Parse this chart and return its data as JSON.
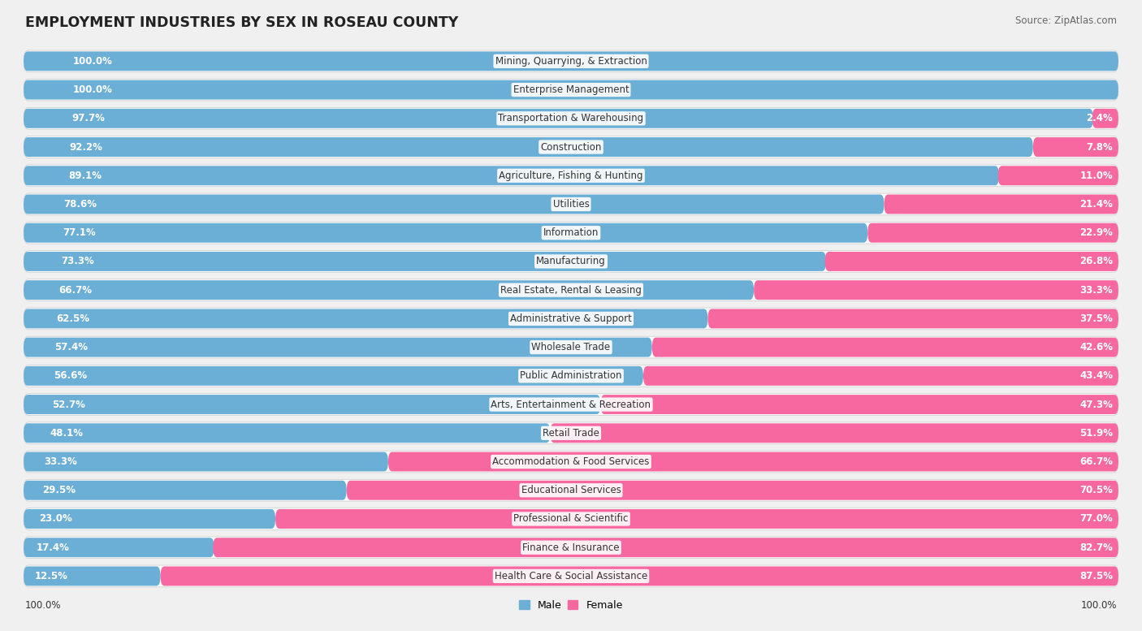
{
  "title": "EMPLOYMENT INDUSTRIES BY SEX IN ROSEAU COUNTY",
  "source": "Source: ZipAtlas.com",
  "industries": [
    {
      "name": "Mining, Quarrying, & Extraction",
      "male": 100.0,
      "female": 0.0
    },
    {
      "name": "Enterprise Management",
      "male": 100.0,
      "female": 0.0
    },
    {
      "name": "Transportation & Warehousing",
      "male": 97.7,
      "female": 2.4
    },
    {
      "name": "Construction",
      "male": 92.2,
      "female": 7.8
    },
    {
      "name": "Agriculture, Fishing & Hunting",
      "male": 89.1,
      "female": 11.0
    },
    {
      "name": "Utilities",
      "male": 78.6,
      "female": 21.4
    },
    {
      "name": "Information",
      "male": 77.1,
      "female": 22.9
    },
    {
      "name": "Manufacturing",
      "male": 73.3,
      "female": 26.8
    },
    {
      "name": "Real Estate, Rental & Leasing",
      "male": 66.7,
      "female": 33.3
    },
    {
      "name": "Administrative & Support",
      "male": 62.5,
      "female": 37.5
    },
    {
      "name": "Wholesale Trade",
      "male": 57.4,
      "female": 42.6
    },
    {
      "name": "Public Administration",
      "male": 56.6,
      "female": 43.4
    },
    {
      "name": "Arts, Entertainment & Recreation",
      "male": 52.7,
      "female": 47.3
    },
    {
      "name": "Retail Trade",
      "male": 48.1,
      "female": 51.9
    },
    {
      "name": "Accommodation & Food Services",
      "male": 33.3,
      "female": 66.7
    },
    {
      "name": "Educational Services",
      "male": 29.5,
      "female": 70.5
    },
    {
      "name": "Professional & Scientific",
      "male": 23.0,
      "female": 77.0
    },
    {
      "name": "Finance & Insurance",
      "male": 17.4,
      "female": 82.7
    },
    {
      "name": "Health Care & Social Assistance",
      "male": 12.5,
      "female": 87.5
    }
  ],
  "male_color": "#6baed6",
  "female_color": "#f768a1",
  "background_color": "#f0f0f0",
  "bar_bg_color": "#ffffff",
  "bar_height": 0.68,
  "title_fontsize": 12.5,
  "label_fontsize": 8.5,
  "industry_fontsize": 8.5,
  "source_fontsize": 8.5
}
